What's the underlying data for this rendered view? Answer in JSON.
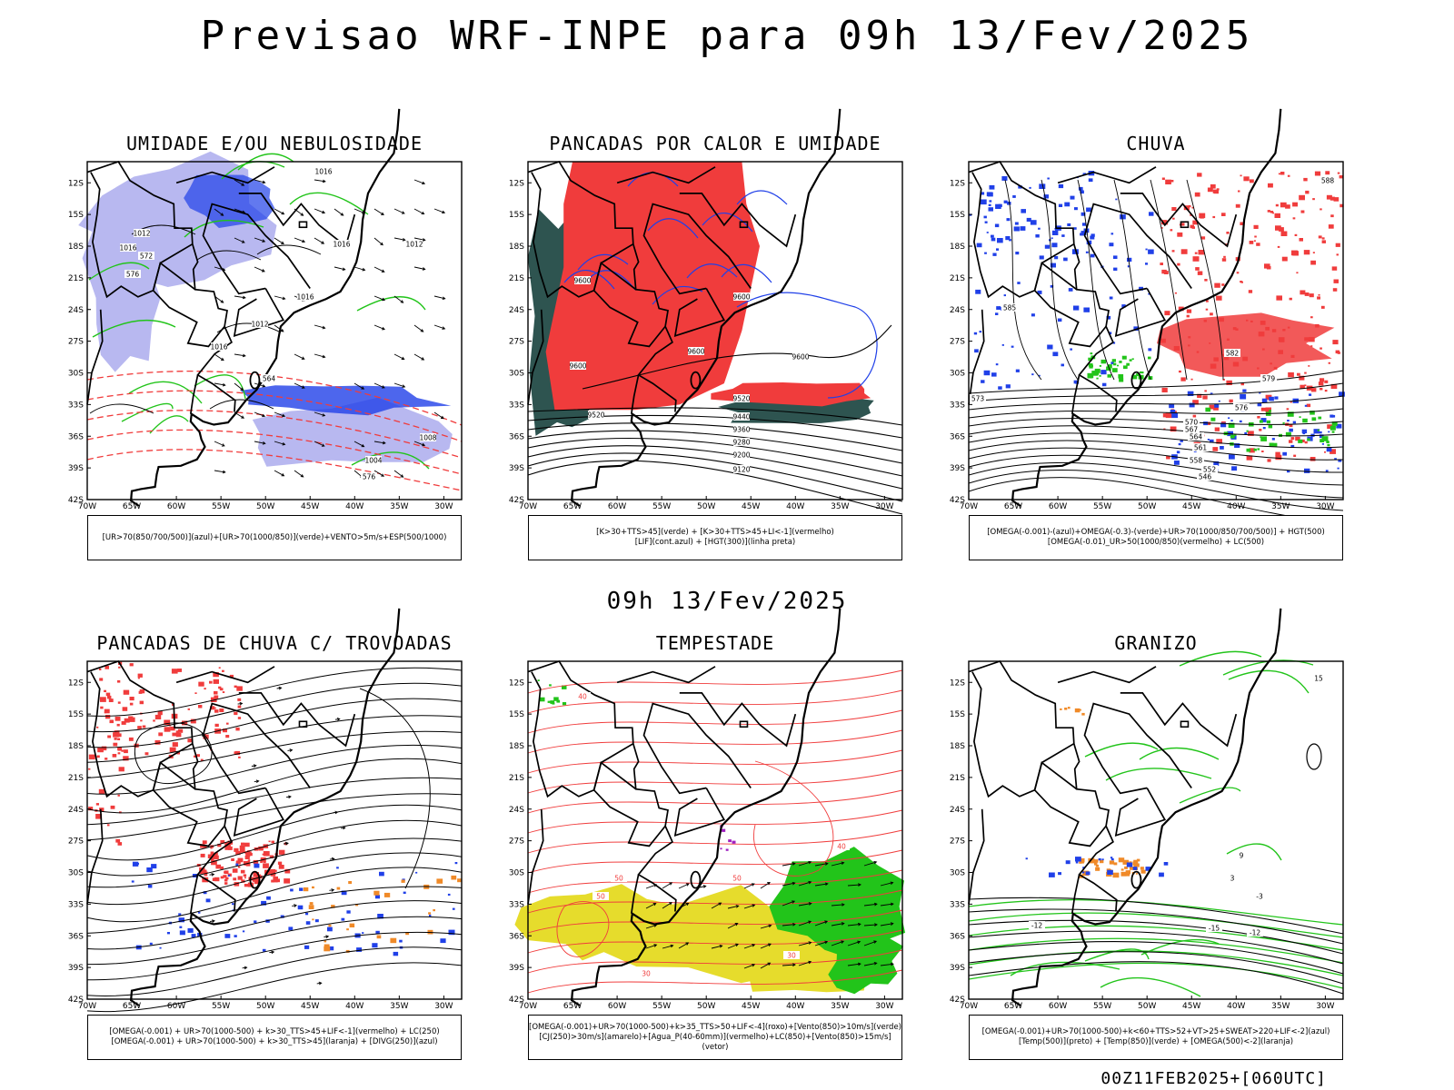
{
  "title": "Previsao WRF-INPE  para 09h 13/Fev/2025",
  "mid_time": "09h 13/Fev/2025",
  "footer": "00Z11FEB2025+[060UTC]",
  "axes": {
    "lat_labels": [
      "12S",
      "15S",
      "18S",
      "21S",
      "24S",
      "27S",
      "30S",
      "33S",
      "36S",
      "39S",
      "42S"
    ],
    "lon_labels": [
      "70W",
      "65W",
      "60W",
      "55W",
      "50W",
      "45W",
      "40W",
      "35W",
      "30W"
    ]
  },
  "panels": [
    {
      "title": "UMIDADE E/OU NEBULOSIDADE",
      "caption": [
        "[UR>70(850/700/500)](azul)+[UR>70(1000/850)](verde)+VENTO>5m/s+ESP(500/1000)"
      ],
      "contour_labels": [
        "1016",
        "1012",
        "1016",
        "1016",
        "1016",
        "1012",
        "1016",
        "1012",
        "1008",
        "1004",
        "576",
        "576",
        "572",
        "564"
      ]
    },
    {
      "title": "PANCADAS POR CALOR E UMIDADE",
      "caption": [
        "[K>30+TTS>45](verde) + [K>30+TTS>45+LI<-1](vermelho)",
        "[LIF](cont.azul) + [HGT(300)](linha preta)"
      ],
      "contour_labels": [
        "9600",
        "9600",
        "9600",
        "9600",
        "9600",
        "9520",
        "9520",
        "9440",
        "9360",
        "9280",
        "9200",
        "9120"
      ]
    },
    {
      "title": "CHUVA",
      "caption": [
        "[OMEGA(-0.001)-(azul)+OMEGA(-0.3)-(verde)+UR>70(1000/850/700/500)] + HGT(500)",
        "[OMEGA(-0.01)_UR>50(1000/850)(vermelho) + LC(500)"
      ],
      "contour_labels": [
        "588",
        "585",
        "582",
        "579",
        "576",
        "573",
        "570",
        "567",
        "564",
        "561",
        "558",
        "552",
        "546"
      ]
    },
    {
      "title": "PANCADAS DE CHUVA C/ TROVOADAS",
      "caption": [
        "[OMEGA(-0.001) + UR>70(1000-500) + k>30_TTS>45+LIF<-1](vermelho) + LC(250)",
        "[OMEGA(-0.001) + UR>70(1000-500) + k>30_TTS>45](laranja) + [DIVG(250)](azul)"
      ],
      "contour_labels": []
    },
    {
      "title": "TEMPESTADE",
      "caption": [
        "[OMEGA(-0.001)+UR>70(1000-500)+k>35_TTS>50+LIF<-4](roxo)+[Vento(850)>10m/s](verde)",
        "[CJ(250)>30m/s](amarelo)+[Agua_P(40-60mm)](vermelho)+LC(850)+[Vento(850)>15m/s](vetor)"
      ],
      "contour_labels": [
        "50",
        "50",
        "50",
        "40",
        "40",
        "30",
        "30"
      ]
    },
    {
      "title": "GRANIZO",
      "caption": [
        "[OMEGA(-0.001)+UR>70(1000-500)+k<60+TTS>52+VT>25+SWEAT>220+LIF<-2](azul)",
        "[Temp(500)](preto) + [Temp(850)](verde) + [OMEGA(500)<-2](laranja)"
      ],
      "contour_labels": [
        "-12",
        "-12",
        "-15",
        "-3",
        "3",
        "9",
        "15"
      ]
    }
  ],
  "colors": {
    "red": "#f03c3c",
    "green": "#22c41a",
    "blue": "#2040e8",
    "lavender": "#b8b8f0",
    "darkteal": "#2e5450",
    "yellow": "#e6dc2c",
    "orange": "#f08a28",
    "purple": "#a020c0"
  }
}
